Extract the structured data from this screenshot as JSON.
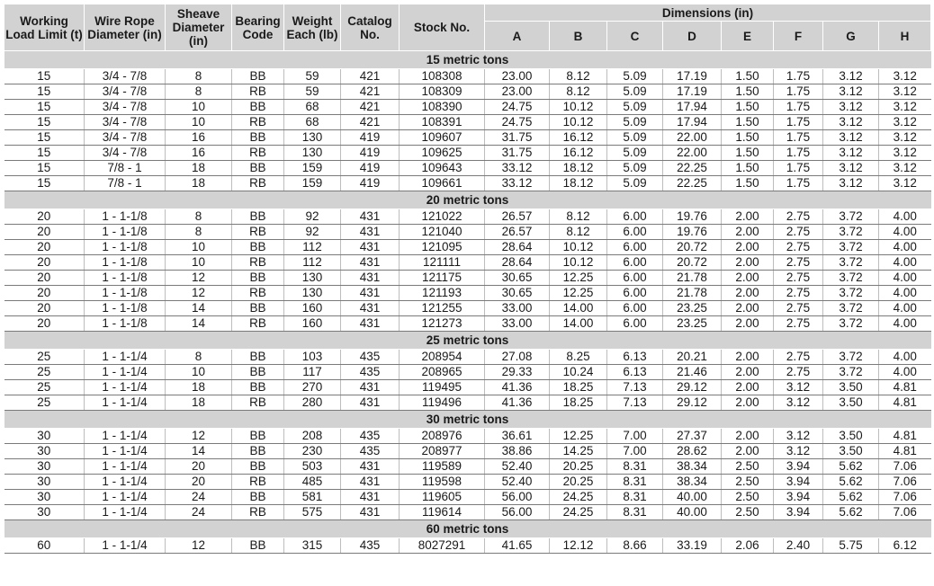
{
  "headers": {
    "working_load_limit": "Working Load Limit (t)",
    "wire_rope_diameter": "Wire Rope Diameter (in)",
    "sheave_diameter": "Sheave Diameter (in)",
    "bearing_code": "Bearing Code",
    "weight_each": "Weight Each (lb)",
    "catalog_no": "Catalog No.",
    "stock_no": "Stock No.",
    "dimensions": "Dimensions (in)",
    "dims": [
      "A",
      "B",
      "C",
      "D",
      "E",
      "F",
      "G",
      "H"
    ]
  },
  "groups": [
    {
      "title": "15 metric tons",
      "rows": [
        [
          "15",
          "3/4 - 7/8",
          "8",
          "BB",
          "59",
          "421",
          "108308",
          "23.00",
          "8.12",
          "5.09",
          "17.19",
          "1.50",
          "1.75",
          "3.12",
          "3.12"
        ],
        [
          "15",
          "3/4 - 7/8",
          "8",
          "RB",
          "59",
          "421",
          "108309",
          "23.00",
          "8.12",
          "5.09",
          "17.19",
          "1.50",
          "1.75",
          "3.12",
          "3.12"
        ],
        [
          "15",
          "3/4 - 7/8",
          "10",
          "BB",
          "68",
          "421",
          "108390",
          "24.75",
          "10.12",
          "5.09",
          "17.94",
          "1.50",
          "1.75",
          "3.12",
          "3.12"
        ],
        [
          "15",
          "3/4 - 7/8",
          "10",
          "RB",
          "68",
          "421",
          "108391",
          "24.75",
          "10.12",
          "5.09",
          "17.94",
          "1.50",
          "1.75",
          "3.12",
          "3.12"
        ],
        [
          "15",
          "3/4 - 7/8",
          "16",
          "BB",
          "130",
          "419",
          "109607",
          "31.75",
          "16.12",
          "5.09",
          "22.00",
          "1.50",
          "1.75",
          "3.12",
          "3.12"
        ],
        [
          "15",
          "3/4 - 7/8",
          "16",
          "RB",
          "130",
          "419",
          "109625",
          "31.75",
          "16.12",
          "5.09",
          "22.00",
          "1.50",
          "1.75",
          "3.12",
          "3.12"
        ],
        [
          "15",
          "7/8 - 1",
          "18",
          "BB",
          "159",
          "419",
          "109643",
          "33.12",
          "18.12",
          "5.09",
          "22.25",
          "1.50",
          "1.75",
          "3.12",
          "3.12"
        ],
        [
          "15",
          "7/8 - 1",
          "18",
          "RB",
          "159",
          "419",
          "109661",
          "33.12",
          "18.12",
          "5.09",
          "22.25",
          "1.50",
          "1.75",
          "3.12",
          "3.12"
        ]
      ]
    },
    {
      "title": "20 metric tons",
      "rows": [
        [
          "20",
          "1 - 1-1/8",
          "8",
          "BB",
          "92",
          "431",
          "121022",
          "26.57",
          "8.12",
          "6.00",
          "19.76",
          "2.00",
          "2.75",
          "3.72",
          "4.00"
        ],
        [
          "20",
          "1 - 1-1/8",
          "8",
          "RB",
          "92",
          "431",
          "121040",
          "26.57",
          "8.12",
          "6.00",
          "19.76",
          "2.00",
          "2.75",
          "3.72",
          "4.00"
        ],
        [
          "20",
          "1 - 1-1/8",
          "10",
          "BB",
          "112",
          "431",
          "121095",
          "28.64",
          "10.12",
          "6.00",
          "20.72",
          "2.00",
          "2.75",
          "3.72",
          "4.00"
        ],
        [
          "20",
          "1 - 1-1/8",
          "10",
          "RB",
          "112",
          "431",
          "121111",
          "28.64",
          "10.12",
          "6.00",
          "20.72",
          "2.00",
          "2.75",
          "3.72",
          "4.00"
        ],
        [
          "20",
          "1 - 1-1/8",
          "12",
          "BB",
          "130",
          "431",
          "121175",
          "30.65",
          "12.25",
          "6.00",
          "21.78",
          "2.00",
          "2.75",
          "3.72",
          "4.00"
        ],
        [
          "20",
          "1 - 1-1/8",
          "12",
          "RB",
          "130",
          "431",
          "121193",
          "30.65",
          "12.25",
          "6.00",
          "21.78",
          "2.00",
          "2.75",
          "3.72",
          "4.00"
        ],
        [
          "20",
          "1 - 1-1/8",
          "14",
          "BB",
          "160",
          "431",
          "121255",
          "33.00",
          "14.00",
          "6.00",
          "23.25",
          "2.00",
          "2.75",
          "3.72",
          "4.00"
        ],
        [
          "20",
          "1 - 1-1/8",
          "14",
          "RB",
          "160",
          "431",
          "121273",
          "33.00",
          "14.00",
          "6.00",
          "23.25",
          "2.00",
          "2.75",
          "3.72",
          "4.00"
        ]
      ]
    },
    {
      "title": "25 metric tons",
      "rows": [
        [
          "25",
          "1 - 1-1/4",
          "8",
          "BB",
          "103",
          "435",
          "208954",
          "27.08",
          "8.25",
          "6.13",
          "20.21",
          "2.00",
          "2.75",
          "3.72",
          "4.00"
        ],
        [
          "25",
          "1 - 1-1/4",
          "10",
          "BB",
          "117",
          "435",
          "208965",
          "29.33",
          "10.24",
          "6.13",
          "21.46",
          "2.00",
          "2.75",
          "3.72",
          "4.00"
        ],
        [
          "25",
          "1 - 1-1/4",
          "18",
          "BB",
          "270",
          "431",
          "119495",
          "41.36",
          "18.25",
          "7.13",
          "29.12",
          "2.00",
          "3.12",
          "3.50",
          "4.81"
        ],
        [
          "25",
          "1 - 1-1/4",
          "18",
          "RB",
          "280",
          "431",
          "119496",
          "41.36",
          "18.25",
          "7.13",
          "29.12",
          "2.00",
          "3.12",
          "3.50",
          "4.81"
        ]
      ]
    },
    {
      "title": "30 metric tons",
      "rows": [
        [
          "30",
          "1 - 1-1/4",
          "12",
          "BB",
          "208",
          "435",
          "208976",
          "36.61",
          "12.25",
          "7.00",
          "27.37",
          "2.00",
          "3.12",
          "3.50",
          "4.81"
        ],
        [
          "30",
          "1 - 1-1/4",
          "14",
          "BB",
          "230",
          "435",
          "208977",
          "38.86",
          "14.25",
          "7.00",
          "28.62",
          "2.00",
          "3.12",
          "3.50",
          "4.81"
        ],
        [
          "30",
          "1 - 1-1/4",
          "20",
          "BB",
          "503",
          "431",
          "119589",
          "52.40",
          "20.25",
          "8.31",
          "38.34",
          "2.50",
          "3.94",
          "5.62",
          "7.06"
        ],
        [
          "30",
          "1 - 1-1/4",
          "20",
          "RB",
          "485",
          "431",
          "119598",
          "52.40",
          "20.25",
          "8.31",
          "38.34",
          "2.50",
          "3.94",
          "5.62",
          "7.06"
        ],
        [
          "30",
          "1 - 1-1/4",
          "24",
          "BB",
          "581",
          "431",
          "119605",
          "56.00",
          "24.25",
          "8.31",
          "40.00",
          "2.50",
          "3.94",
          "5.62",
          "7.06"
        ],
        [
          "30",
          "1 - 1-1/4",
          "24",
          "RB",
          "575",
          "431",
          "119614",
          "56.00",
          "24.25",
          "8.31",
          "40.00",
          "2.50",
          "3.94",
          "5.62",
          "7.06"
        ]
      ]
    },
    {
      "title": "60 metric tons",
      "rows": [
        [
          "60",
          "1 - 1-1/4",
          "12",
          "BB",
          "315",
          "435",
          "8027291",
          "41.65",
          "12.12",
          "8.66",
          "33.19",
          "2.06",
          "2.40",
          "5.75",
          "6.12"
        ]
      ]
    }
  ]
}
